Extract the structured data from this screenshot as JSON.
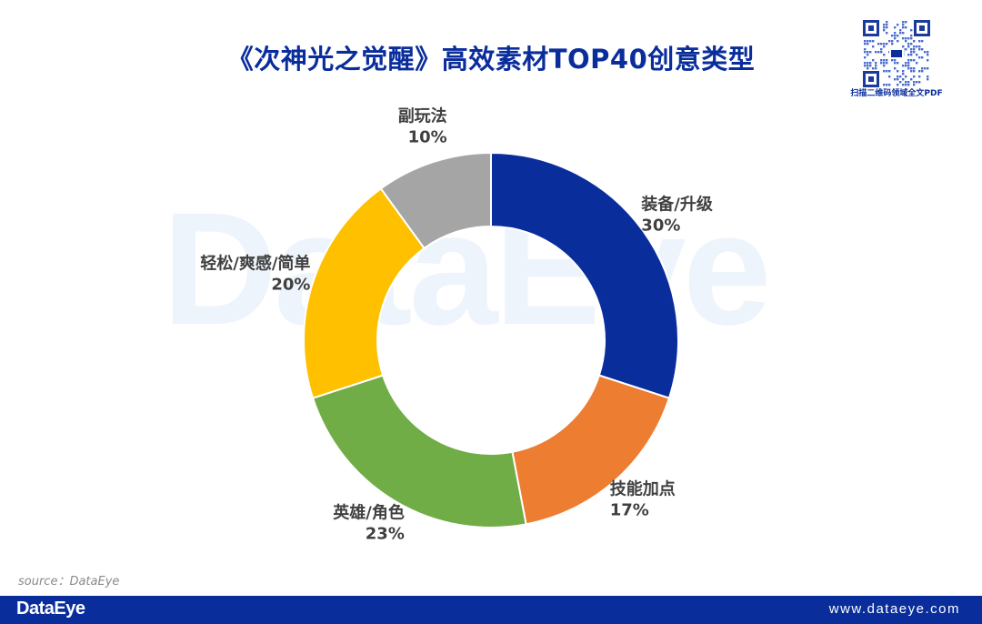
{
  "title": "《次神光之觉醒》高效素材TOP40创意类型",
  "watermark": "DataEye",
  "qr_caption": "扫描二维码领域全文PDF",
  "source": "source：DataEye",
  "footer": {
    "logo": "DataEye",
    "url": "www.dataeye.com"
  },
  "colors": {
    "brand": "#0a2d9c"
  },
  "chart_data": {
    "type": "pie",
    "subtype": "donut",
    "title": "《次神光之觉醒》高效素材TOP40创意类型",
    "slices": [
      {
        "label": "装备/升级",
        "value": 30,
        "value_label": "30%",
        "color": "#0a2d9c"
      },
      {
        "label": "技能加点",
        "value": 17,
        "value_label": "17%",
        "color": "#ed7d31"
      },
      {
        "label": "英雄/角色",
        "value": 23,
        "value_label": "23%",
        "color": "#70ad47"
      },
      {
        "label": "轻松/爽感/简单",
        "value": 20,
        "value_label": "20%",
        "color": "#ffc000"
      },
      {
        "label": "副玩法",
        "value": 10,
        "value_label": "10%",
        "color": "#a5a5a5"
      }
    ],
    "start": "12 o'clock",
    "direction": "clockwise",
    "legend": "none",
    "labels": "outside"
  }
}
